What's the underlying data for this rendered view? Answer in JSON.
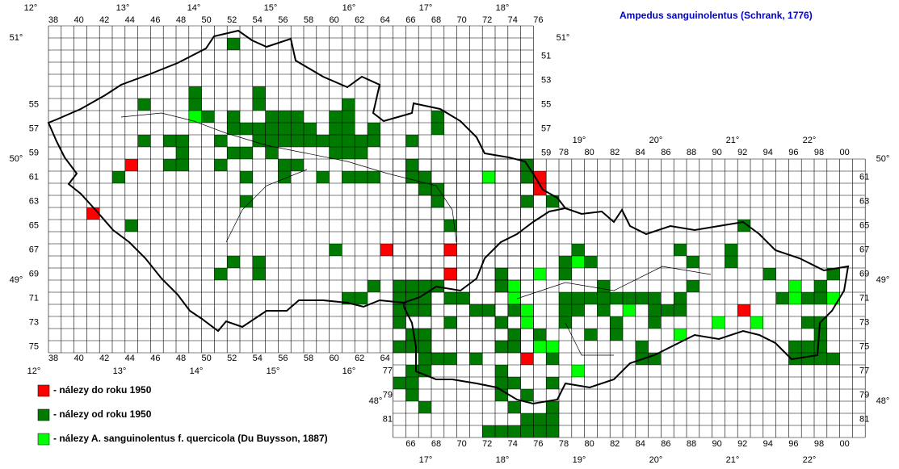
{
  "title": "Ampedus sanguinolentus (Schrank, 1776)",
  "degrees_top_cz": [
    "12°",
    "13°",
    "14°",
    "15°",
    "16°",
    "17°",
    "18°"
  ],
  "degrees_bottom_cz": [
    "12°",
    "13°",
    "14°",
    "15°",
    "16°"
  ],
  "degrees_top_sk": [
    "19°",
    "20°",
    "21°",
    "22°"
  ],
  "degrees_bottom_sk": [
    "17°",
    "18°",
    "19°",
    "20°",
    "21°",
    "22°"
  ],
  "latitudes_left": [
    "51°",
    "50°",
    "49°",
    "48°"
  ],
  "latitudes_right": [
    "51°",
    "50°",
    "49°",
    "48°"
  ],
  "columns_top_cz": [
    "38",
    "40",
    "42",
    "44",
    "46",
    "48",
    "50",
    "52",
    "54",
    "56",
    "58",
    "60",
    "62",
    "64",
    "66",
    "68",
    "70",
    "72",
    "74",
    "76"
  ],
  "columns_bottom_cz": [
    "38",
    "40",
    "42",
    "44",
    "46",
    "48",
    "50",
    "52",
    "54",
    "56",
    "58",
    "60",
    "62",
    "64"
  ],
  "columns_top_sk": [
    "78",
    "80",
    "82",
    "84",
    "86",
    "88",
    "90",
    "92",
    "94",
    "96",
    "98",
    "00"
  ],
  "columns_bottom_sk": [
    "66",
    "68",
    "70",
    "72",
    "74",
    "76",
    "78",
    "80",
    "82",
    "84",
    "86",
    "88",
    "90",
    "92",
    "94",
    "96",
    "98",
    "00"
  ],
  "rows_left_cz": [
    "55",
    "57",
    "59",
    "61",
    "63",
    "65",
    "67",
    "69",
    "71",
    "73",
    "75"
  ],
  "rows_right_cz": [
    "51",
    "53",
    "55",
    "57",
    "59"
  ],
  "rows_left_sk": [
    "77",
    "79",
    "81"
  ],
  "rows_right_sk": [
    "61",
    "63",
    "65",
    "67",
    "69",
    "71",
    "73",
    "75",
    "77",
    "79",
    "81"
  ],
  "legend": [
    {
      "label": "- nálezy do roku 1950",
      "color": "#ff0000",
      "cells": [
        [
          44,
          60
        ],
        [
          41,
          64
        ],
        [
          64,
          67
        ],
        [
          69,
          67
        ],
        [
          69,
          69
        ],
        [
          76,
          61
        ],
        [
          76,
          62
        ],
        [
          92,
          72
        ],
        [
          75,
          76
        ]
      ]
    },
    {
      "label": "- nálezy od roku 1950",
      "color": "#007a00",
      "cells": [
        [
          52,
          50
        ],
        [
          49,
          54
        ],
        [
          54,
          54
        ],
        [
          45,
          55
        ],
        [
          49,
          55
        ],
        [
          54,
          55
        ],
        [
          61,
          55
        ],
        [
          50,
          56
        ],
        [
          52,
          56
        ],
        [
          55,
          56
        ],
        [
          56,
          56
        ],
        [
          57,
          56
        ],
        [
          60,
          56
        ],
        [
          61,
          56
        ],
        [
          68,
          56
        ],
        [
          52,
          57
        ],
        [
          53,
          57
        ],
        [
          54,
          57
        ],
        [
          55,
          57
        ],
        [
          56,
          57
        ],
        [
          57,
          57
        ],
        [
          58,
          57
        ],
        [
          60,
          57
        ],
        [
          61,
          57
        ],
        [
          63,
          57
        ],
        [
          68,
          57
        ],
        [
          45,
          58
        ],
        [
          47,
          58
        ],
        [
          48,
          58
        ],
        [
          51,
          58
        ],
        [
          54,
          58
        ],
        [
          55,
          58
        ],
        [
          56,
          58
        ],
        [
          57,
          58
        ],
        [
          58,
          58
        ],
        [
          59,
          58
        ],
        [
          60,
          58
        ],
        [
          61,
          58
        ],
        [
          62,
          58
        ],
        [
          63,
          58
        ],
        [
          66,
          58
        ],
        [
          48,
          59
        ],
        [
          52,
          59
        ],
        [
          53,
          59
        ],
        [
          55,
          59
        ],
        [
          60,
          59
        ],
        [
          61,
          59
        ],
        [
          62,
          59
        ],
        [
          47,
          60
        ],
        [
          48,
          60
        ],
        [
          51,
          60
        ],
        [
          56,
          60
        ],
        [
          57,
          60
        ],
        [
          66,
          60
        ],
        [
          75,
          60
        ],
        [
          43,
          61
        ],
        [
          53,
          61
        ],
        [
          56,
          61
        ],
        [
          59,
          61
        ],
        [
          61,
          61
        ],
        [
          62,
          61
        ],
        [
          63,
          61
        ],
        [
          66,
          61
        ],
        [
          67,
          61
        ],
        [
          75,
          61
        ],
        [
          67,
          62
        ],
        [
          68,
          62
        ],
        [
          75,
          63
        ],
        [
          77,
          63
        ],
        [
          53,
          63
        ],
        [
          68,
          63
        ],
        [
          44,
          65
        ],
        [
          69,
          65
        ],
        [
          92,
          65
        ],
        [
          60,
          67
        ],
        [
          79,
          67
        ],
        [
          87,
          67
        ],
        [
          91,
          67
        ],
        [
          52,
          68
        ],
        [
          54,
          68
        ],
        [
          78,
          68
        ],
        [
          80,
          68
        ],
        [
          88,
          68
        ],
        [
          91,
          68
        ],
        [
          51,
          69
        ],
        [
          54,
          69
        ],
        [
          73,
          69
        ],
        [
          78,
          69
        ],
        [
          94,
          69
        ],
        [
          99,
          69
        ],
        [
          63,
          70
        ],
        [
          65,
          70
        ],
        [
          66,
          70
        ],
        [
          67,
          70
        ],
        [
          68,
          70
        ],
        [
          73,
          70
        ],
        [
          81,
          70
        ],
        [
          88,
          70
        ],
        [
          98,
          70
        ],
        [
          61,
          71
        ],
        [
          62,
          71
        ],
        [
          65,
          71
        ],
        [
          66,
          71
        ],
        [
          67,
          71
        ],
        [
          69,
          71
        ],
        [
          70,
          71
        ],
        [
          78,
          71
        ],
        [
          79,
          71
        ],
        [
          80,
          71
        ],
        [
          81,
          71
        ],
        [
          82,
          71
        ],
        [
          83,
          71
        ],
        [
          84,
          71
        ],
        [
          85,
          71
        ],
        [
          87,
          71
        ],
        [
          95,
          71
        ],
        [
          97,
          71
        ],
        [
          98,
          71
        ],
        [
          65,
          72
        ],
        [
          66,
          72
        ],
        [
          67,
          72
        ],
        [
          71,
          72
        ],
        [
          72,
          72
        ],
        [
          74,
          72
        ],
        [
          78,
          72
        ],
        [
          79,
          72
        ],
        [
          81,
          72
        ],
        [
          85,
          72
        ],
        [
          86,
          72
        ],
        [
          87,
          72
        ],
        [
          65,
          73
        ],
        [
          69,
          73
        ],
        [
          73,
          73
        ],
        [
          78,
          73
        ],
        [
          82,
          73
        ],
        [
          85,
          73
        ],
        [
          97,
          73
        ],
        [
          98,
          73
        ],
        [
          66,
          74
        ],
        [
          67,
          74
        ],
        [
          74,
          74
        ],
        [
          76,
          74
        ],
        [
          80,
          74
        ],
        [
          82,
          74
        ],
        [
          98,
          74
        ],
        [
          65,
          75
        ],
        [
          66,
          75
        ],
        [
          67,
          75
        ],
        [
          73,
          75
        ],
        [
          74,
          75
        ],
        [
          84,
          75
        ],
        [
          96,
          75
        ],
        [
          97,
          75
        ],
        [
          98,
          75
        ],
        [
          67,
          76
        ],
        [
          68,
          76
        ],
        [
          69,
          76
        ],
        [
          71,
          76
        ],
        [
          77,
          76
        ],
        [
          84,
          76
        ],
        [
          85,
          76
        ],
        [
          96,
          76
        ],
        [
          97,
          76
        ],
        [
          98,
          76
        ],
        [
          99,
          76
        ],
        [
          66,
          77
        ],
        [
          67,
          77
        ],
        [
          73,
          77
        ],
        [
          65,
          78
        ],
        [
          66,
          78
        ],
        [
          73,
          78
        ],
        [
          74,
          78
        ],
        [
          77,
          78
        ],
        [
          66,
          79
        ],
        [
          73,
          79
        ],
        [
          75,
          79
        ],
        [
          67,
          80
        ],
        [
          74,
          80
        ],
        [
          77,
          80
        ],
        [
          75,
          81
        ],
        [
          76,
          81
        ],
        [
          77,
          81
        ],
        [
          72,
          82
        ],
        [
          73,
          82
        ],
        [
          74,
          82
        ],
        [
          75,
          82
        ],
        [
          76,
          82
        ],
        [
          77,
          82
        ]
      ]
    },
    {
      "label": "- nálezy A. sanguinolentus f. quercicola (Du Buysson, 1887)",
      "color": "#00ff00",
      "cells": [
        [
          49,
          56
        ],
        [
          72,
          61
        ],
        [
          76,
          69
        ],
        [
          74,
          70
        ],
        [
          75,
          72
        ],
        [
          75,
          73
        ],
        [
          76,
          75
        ],
        [
          77,
          75
        ],
        [
          79,
          77
        ],
        [
          83,
          72
        ],
        [
          90,
          73
        ],
        [
          93,
          73
        ],
        [
          96,
          71
        ],
        [
          96,
          70
        ],
        [
          87,
          74
        ],
        [
          79,
          68
        ],
        [
          99,
          71
        ],
        [
          74,
          71
        ]
      ]
    }
  ]
}
